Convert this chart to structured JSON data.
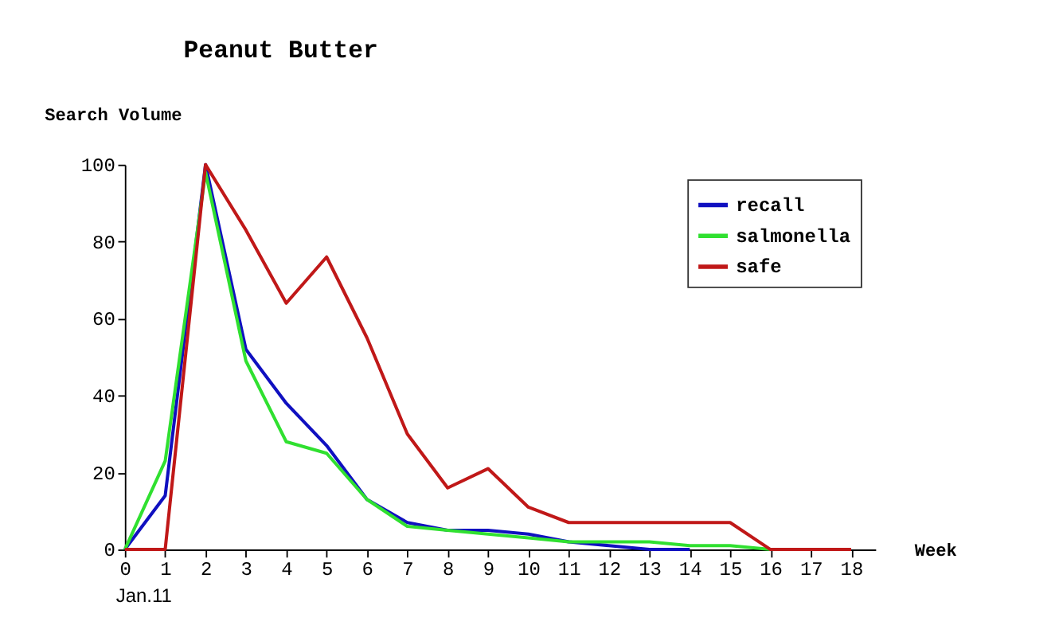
{
  "chart_data": {
    "type": "line",
    "title": "Peanut Butter",
    "xlabel": "Week",
    "ylabel": "Search Volume",
    "x": [
      0,
      1,
      2,
      3,
      4,
      5,
      6,
      7,
      8,
      9,
      10,
      11,
      12,
      13,
      14,
      15,
      16,
      17,
      18
    ],
    "series": [
      {
        "name": "recall",
        "color": "#1010c0",
        "values": [
          0,
          14,
          100,
          52,
          38,
          27,
          13,
          7,
          5,
          5,
          4,
          2,
          1,
          0,
          0,
          null,
          null,
          null,
          null
        ]
      },
      {
        "name": "salmonella",
        "color": "#30e030",
        "values": [
          0,
          23,
          98,
          49,
          28,
          25,
          13,
          6,
          5,
          4,
          3,
          2,
          2,
          2,
          1,
          1,
          0,
          null,
          null
        ]
      },
      {
        "name": "safe",
        "color": "#c01818",
        "values": [
          0,
          0,
          100,
          83,
          64,
          76,
          55,
          30,
          16,
          21,
          11,
          7,
          7,
          7,
          7,
          7,
          0,
          0,
          0
        ]
      }
    ],
    "xlim": [
      0,
      18.6
    ],
    "xticks": [
      0,
      1,
      2,
      3,
      4,
      5,
      6,
      7,
      8,
      9,
      10,
      11,
      12,
      13,
      14,
      15,
      16,
      17,
      18
    ],
    "ylim": [
      0,
      100
    ],
    "yticks": [
      0,
      20,
      40,
      60,
      80,
      100
    ],
    "grid": false,
    "legend": "top right",
    "line_style": "solid",
    "marker": "none",
    "annotations": [
      "Jan.11"
    ]
  }
}
